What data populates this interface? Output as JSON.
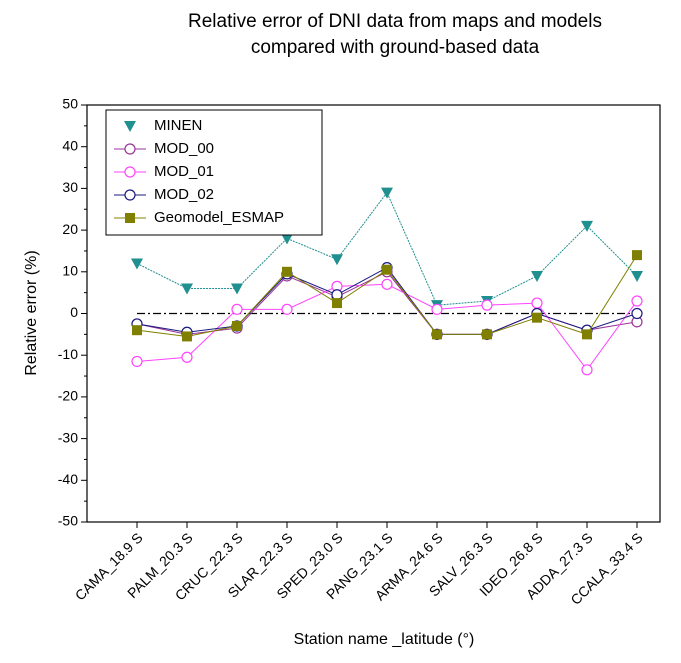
{
  "chart_data": {
    "type": "line",
    "title": [
      "Relative error of DNI data from maps and models",
      "compared with ground-based data"
    ],
    "x_label": "Station name _latitude (°)",
    "y_label": "Relative error (%)",
    "categories": [
      "CAMA_18.9 S",
      "PALM_20.3 S",
      "CRUC_22.3 S",
      "SLAR_22.3 S",
      "SPED_23.0 S",
      "PANG_23.1 S",
      "ARMA_24.6 S",
      "SALV_26.3 S",
      "IDEO_26.8 S",
      "ADDA_27.3 S",
      "CCALA_33.4 S"
    ],
    "series": [
      {
        "name": "MINEN",
        "color": "#1f8f8f",
        "marker": "triangle-down",
        "values": [
          12,
          6,
          6,
          18,
          13,
          29,
          2,
          3,
          9,
          21,
          9
        ]
      },
      {
        "name": "MOD_00",
        "color": "#993399",
        "marker": "circle",
        "values": [
          -2.5,
          -5,
          -3.5,
          9,
          4,
          10,
          -5,
          -5,
          0,
          -4,
          -2
        ]
      },
      {
        "name": "MOD_01",
        "color": "#ff44ff",
        "marker": "circle",
        "values": [
          -11.5,
          -10.5,
          1,
          1,
          6.5,
          7,
          1,
          2,
          2.5,
          -13.5,
          3
        ]
      },
      {
        "name": "MOD_02",
        "color": "#1a1a80",
        "marker": "circle",
        "values": [
          -2.5,
          -4.5,
          -3,
          9.5,
          4.5,
          11,
          -5,
          -5,
          0,
          -4,
          0
        ]
      },
      {
        "name": "Geomodel_ESMAP",
        "color": "#808000",
        "marker": "square",
        "values": [
          -4,
          -5.5,
          -3,
          10,
          2.5,
          10.5,
          -5,
          -5,
          -1,
          -5,
          14
        ]
      }
    ],
    "ylim": [
      -50,
      50
    ],
    "yticks": [
      -50,
      -40,
      -30,
      -20,
      -10,
      0,
      10,
      20,
      30,
      40,
      50
    ],
    "legend": "upper-left"
  }
}
